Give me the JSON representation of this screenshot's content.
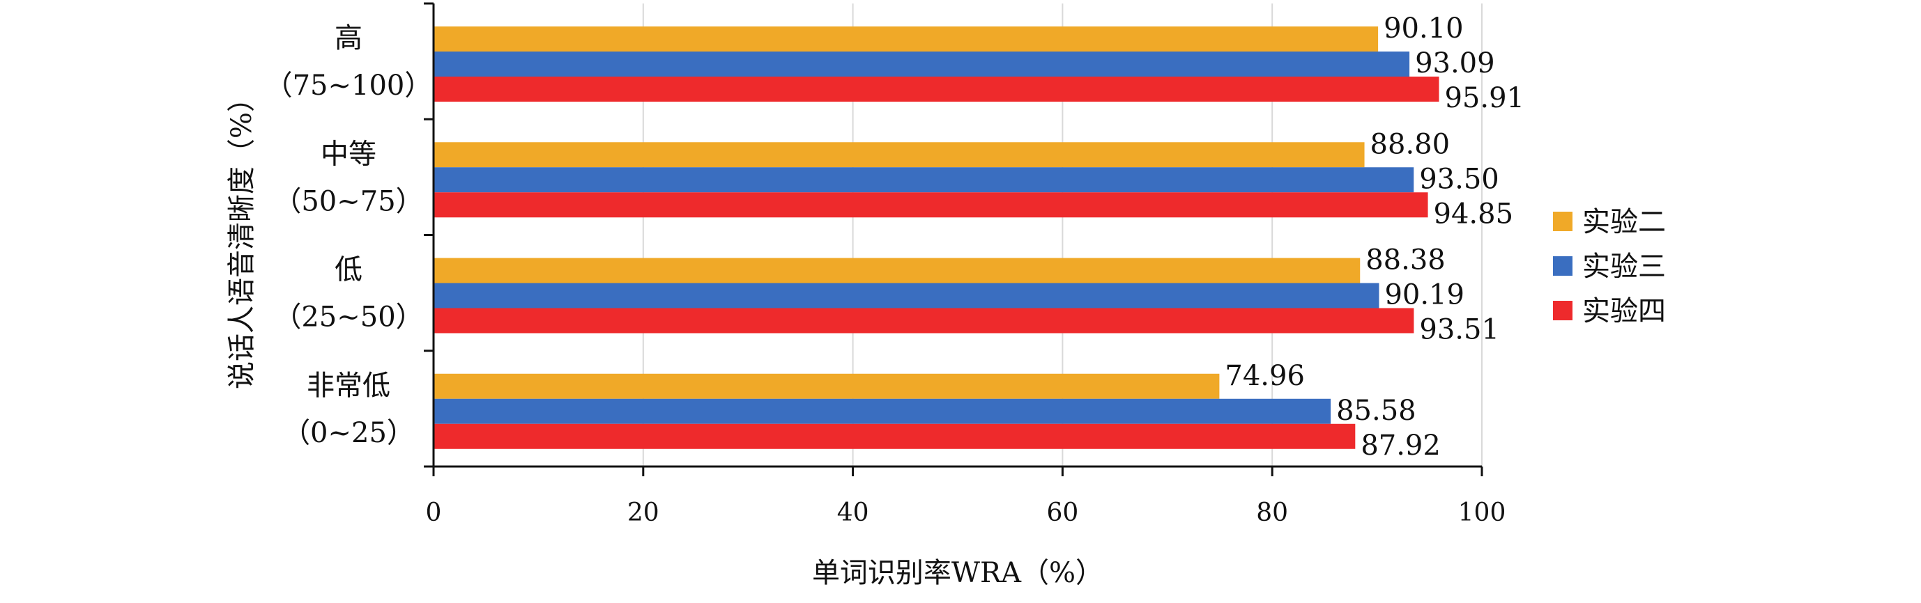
{
  "chart_data": {
    "type": "bar",
    "orientation": "horizontal",
    "title": "",
    "xlabel": "单词识别率WRA（%）",
    "ylabel": "说话人语音清晰度（%）",
    "xlim": [
      0,
      100
    ],
    "xticks": [
      0,
      20,
      40,
      60,
      80,
      100
    ],
    "grid": "vertical",
    "legend_position": "right",
    "categories": [
      {
        "name": "高",
        "range": "（75~100）"
      },
      {
        "name": "中等",
        "range": "（50~75）"
      },
      {
        "name": "低",
        "range": "（25~50）"
      },
      {
        "name": "非常低",
        "range": "（0~25）"
      }
    ],
    "series": [
      {
        "name": "实验二",
        "color": "#F0A928",
        "values": [
          90.1,
          88.8,
          88.38,
          74.96
        ],
        "labels": [
          "90.10",
          "88.80",
          "88.38",
          "74.96"
        ]
      },
      {
        "name": "实验三",
        "color": "#3A6EC0",
        "values": [
          93.09,
          93.5,
          90.19,
          85.58
        ],
        "labels": [
          "93.09",
          "93.50",
          "90.19",
          "85.58"
        ]
      },
      {
        "name": "实验四",
        "color": "#EE2A2C",
        "values": [
          95.91,
          94.85,
          93.51,
          87.92
        ],
        "labels": [
          "95.91",
          "94.85",
          "93.51",
          "87.92"
        ]
      }
    ]
  }
}
